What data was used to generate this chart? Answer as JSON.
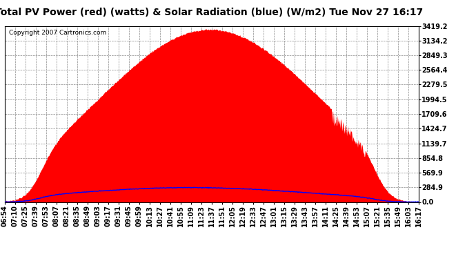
{
  "title": "Total PV Power (red) (watts) & Solar Radiation (blue) (W/m2) Tue Nov 27 16:17",
  "copyright_text": "Copyright 2007 Cartronics.com",
  "y_max": 3419.2,
  "y_ticks": [
    0.0,
    284.9,
    569.9,
    854.8,
    1139.7,
    1424.7,
    1709.6,
    1994.5,
    2279.5,
    2564.4,
    2849.3,
    3134.2,
    3419.2
  ],
  "x_labels": [
    "06:54",
    "07:10",
    "07:25",
    "07:39",
    "07:53",
    "08:07",
    "08:21",
    "08:35",
    "08:49",
    "09:03",
    "09:17",
    "09:31",
    "09:45",
    "09:59",
    "10:13",
    "10:27",
    "10:41",
    "10:55",
    "11:09",
    "11:23",
    "11:37",
    "11:51",
    "12:05",
    "12:19",
    "12:33",
    "12:47",
    "13:01",
    "13:15",
    "13:29",
    "13:43",
    "13:57",
    "14:11",
    "14:25",
    "14:39",
    "14:53",
    "15:07",
    "15:21",
    "15:35",
    "15:49",
    "16:03",
    "16:17"
  ],
  "pv_color": "#ff0000",
  "solar_color": "#0000ff",
  "bg_color": "#ffffff",
  "plot_bg_color": "#ffffff",
  "grid_color": "#888888",
  "title_fontsize": 10,
  "tick_fontsize": 7,
  "copyright_fontsize": 6.5
}
